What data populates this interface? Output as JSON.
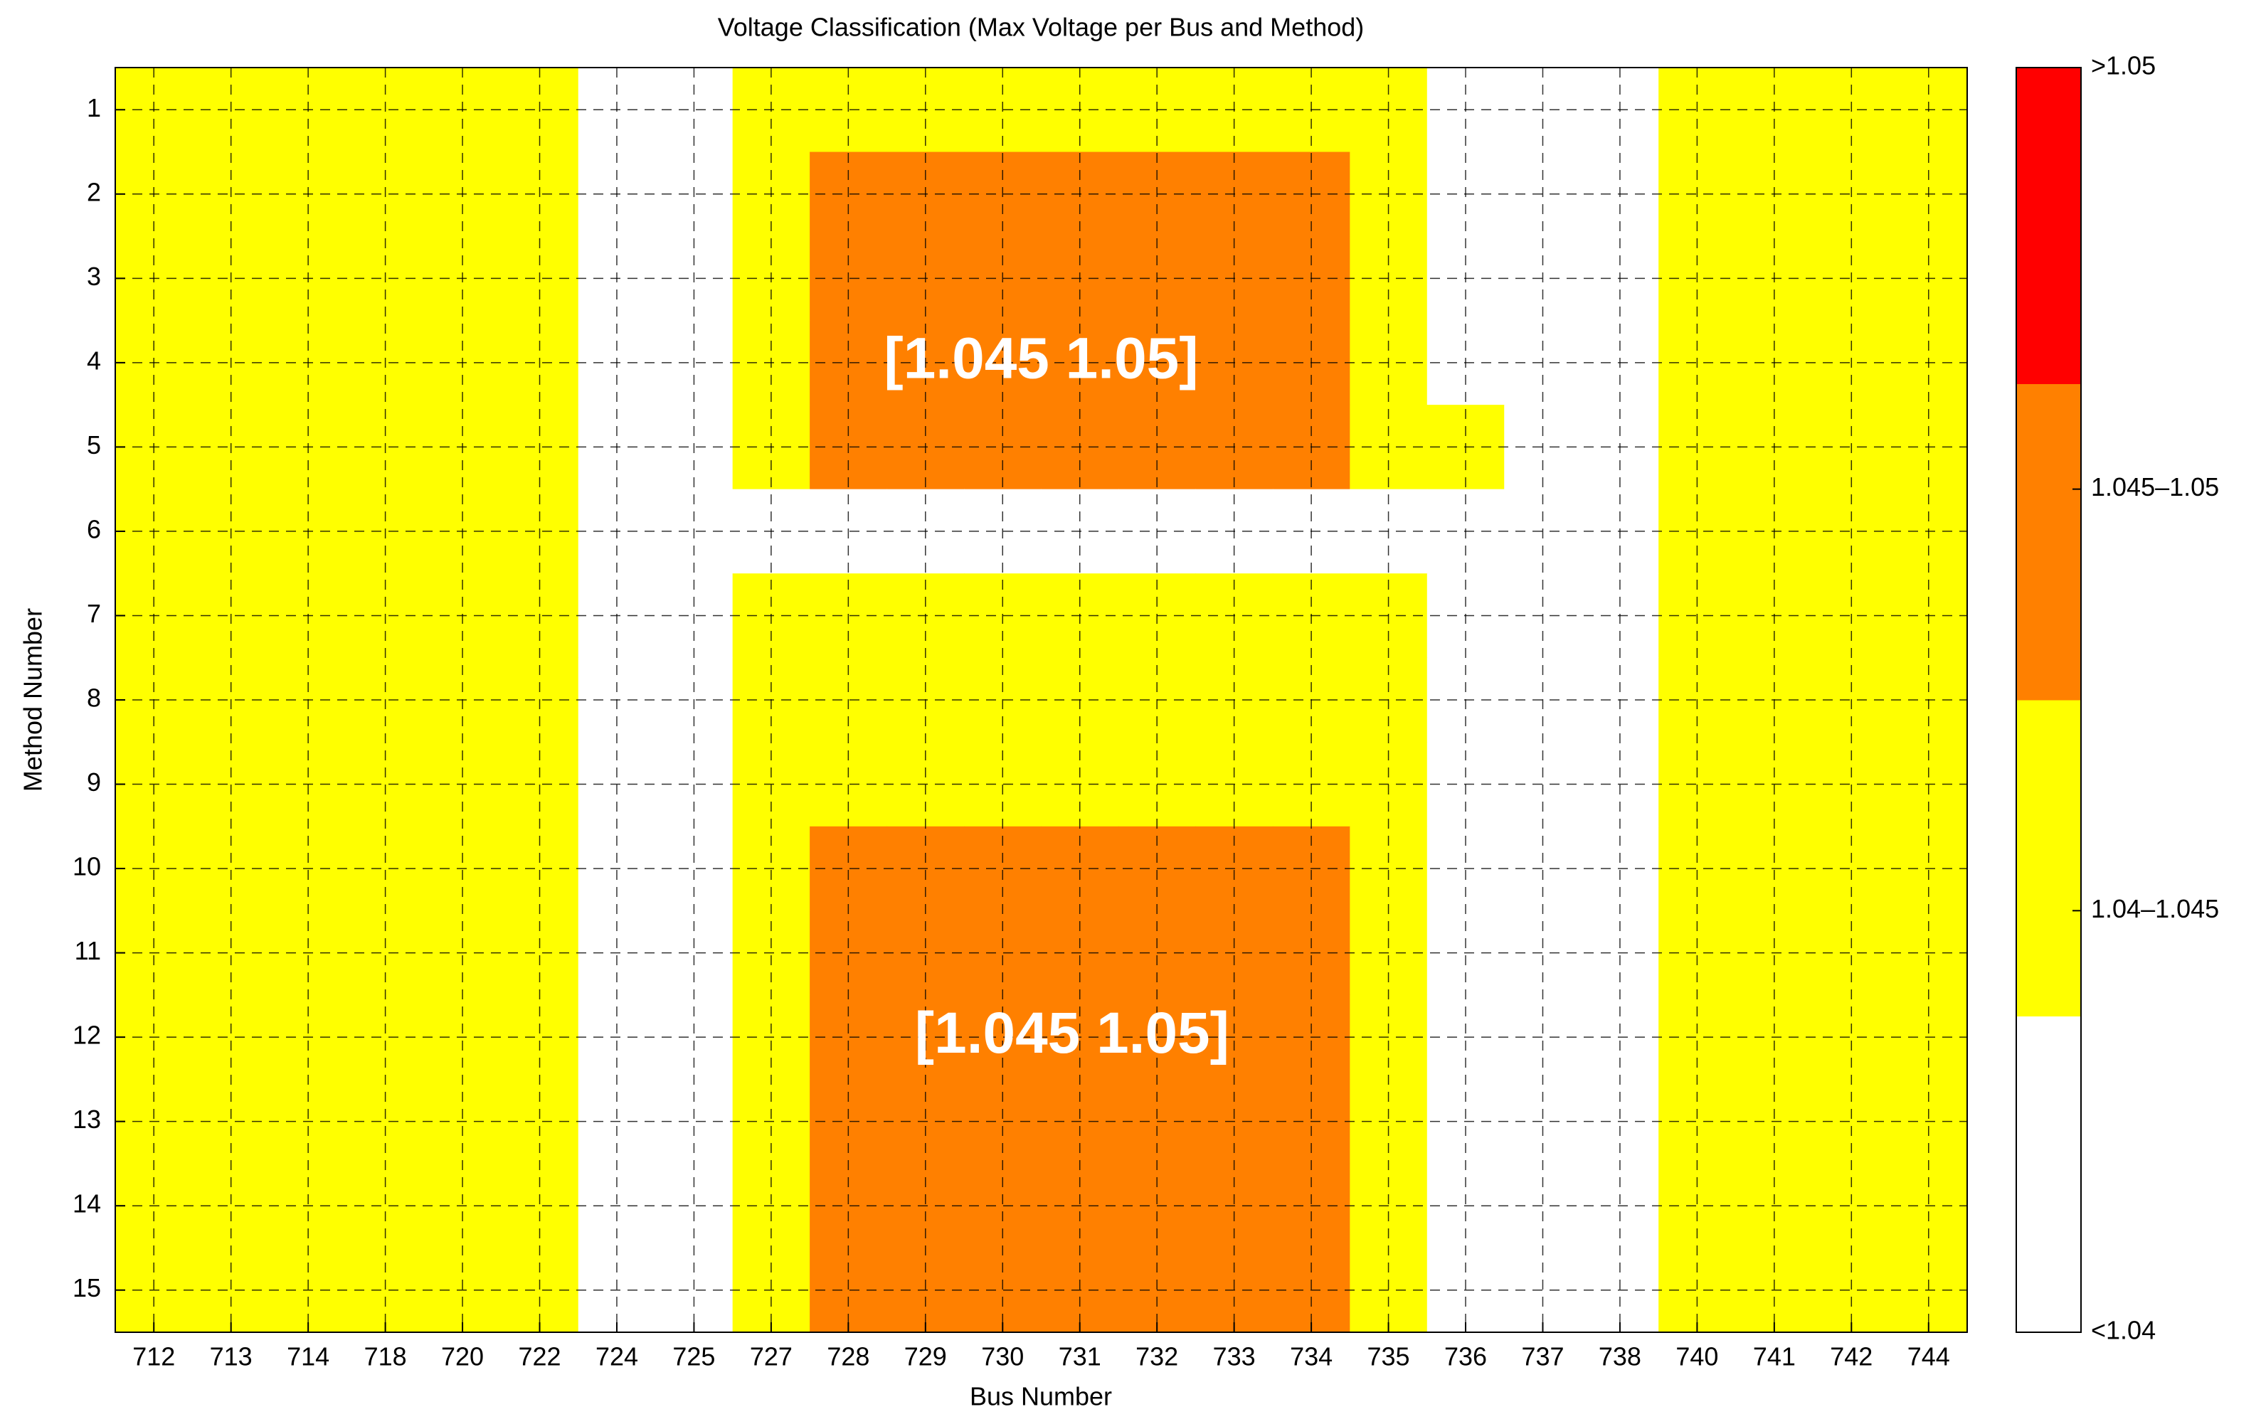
{
  "chart_data": {
    "type": "heatmap",
    "title": "Voltage Classification (Max Voltage per Bus and Method)",
    "x_label": "Bus Number",
    "y_label": "Method Number",
    "categories": [
      "712",
      "713",
      "714",
      "718",
      "720",
      "722",
      "724",
      "725",
      "727",
      "728",
      "729",
      "730",
      "731",
      "732",
      "733",
      "734",
      "735",
      "736",
      "737",
      "738",
      "740",
      "741",
      "742",
      "744"
    ],
    "rows": [
      1,
      2,
      3,
      4,
      5,
      6,
      7,
      8,
      9,
      10,
      11,
      12,
      13,
      14,
      15
    ],
    "z": [
      [
        1,
        1,
        1,
        1,
        1,
        1,
        0,
        0,
        1,
        1,
        1,
        1,
        1,
        1,
        1,
        1,
        1,
        0,
        0,
        0,
        1,
        1,
        1,
        1
      ],
      [
        1,
        1,
        1,
        1,
        1,
        1,
        0,
        0,
        1,
        2,
        2,
        2,
        2,
        2,
        2,
        2,
        1,
        0,
        0,
        0,
        1,
        1,
        1,
        1
      ],
      [
        1,
        1,
        1,
        1,
        1,
        1,
        0,
        0,
        1,
        2,
        2,
        2,
        2,
        2,
        2,
        2,
        1,
        0,
        0,
        0,
        1,
        1,
        1,
        1
      ],
      [
        1,
        1,
        1,
        1,
        1,
        1,
        0,
        0,
        1,
        2,
        2,
        2,
        2,
        2,
        2,
        2,
        1,
        0,
        0,
        0,
        1,
        1,
        1,
        1
      ],
      [
        1,
        1,
        1,
        1,
        1,
        1,
        0,
        0,
        1,
        2,
        2,
        2,
        2,
        2,
        2,
        2,
        1,
        1,
        0,
        0,
        1,
        1,
        1,
        1
      ],
      [
        1,
        1,
        1,
        1,
        1,
        1,
        0,
        0,
        0,
        0,
        0,
        0,
        0,
        0,
        0,
        0,
        0,
        0,
        0,
        0,
        1,
        1,
        1,
        1
      ],
      [
        1,
        1,
        1,
        1,
        1,
        1,
        0,
        0,
        1,
        1,
        1,
        1,
        1,
        1,
        1,
        1,
        1,
        0,
        0,
        0,
        1,
        1,
        1,
        1
      ],
      [
        1,
        1,
        1,
        1,
        1,
        1,
        0,
        0,
        1,
        1,
        1,
        1,
        1,
        1,
        1,
        1,
        1,
        0,
        0,
        0,
        1,
        1,
        1,
        1
      ],
      [
        1,
        1,
        1,
        1,
        1,
        1,
        0,
        0,
        1,
        1,
        1,
        1,
        1,
        1,
        1,
        1,
        1,
        0,
        0,
        0,
        1,
        1,
        1,
        1
      ],
      [
        1,
        1,
        1,
        1,
        1,
        1,
        0,
        0,
        1,
        2,
        2,
        2,
        2,
        2,
        2,
        2,
        1,
        0,
        0,
        0,
        1,
        1,
        1,
        1
      ],
      [
        1,
        1,
        1,
        1,
        1,
        1,
        0,
        0,
        1,
        2,
        2,
        2,
        2,
        2,
        2,
        2,
        1,
        0,
        0,
        0,
        1,
        1,
        1,
        1
      ],
      [
        1,
        1,
        1,
        1,
        1,
        1,
        0,
        0,
        1,
        2,
        2,
        2,
        2,
        2,
        2,
        2,
        1,
        0,
        0,
        0,
        1,
        1,
        1,
        1
      ],
      [
        1,
        1,
        1,
        1,
        1,
        1,
        0,
        0,
        1,
        2,
        2,
        2,
        2,
        2,
        2,
        2,
        1,
        0,
        0,
        0,
        1,
        1,
        1,
        1
      ],
      [
        1,
        1,
        1,
        1,
        1,
        1,
        0,
        0,
        1,
        2,
        2,
        2,
        2,
        2,
        2,
        2,
        1,
        0,
        0,
        0,
        1,
        1,
        1,
        1
      ],
      [
        1,
        1,
        1,
        1,
        1,
        1,
        0,
        0,
        1,
        2,
        2,
        2,
        2,
        2,
        2,
        2,
        1,
        0,
        0,
        0,
        1,
        1,
        1,
        1
      ]
    ],
    "colors": [
      "#ffffff",
      "#ffff00",
      "#ff8000",
      "#ff0000"
    ],
    "clim": [
      0,
      3
    ],
    "cticks": [
      {
        "value": 0,
        "label": "<1.04"
      },
      {
        "value": 1,
        "label": "1.04–1.045"
      },
      {
        "value": 2,
        "label": "1.045–1.05"
      },
      {
        "value": 3,
        "label": ">1.05"
      }
    ],
    "annotations": [
      "[1.045 1.05]",
      "[1.045 1.05]"
    ],
    "grid": true
  }
}
